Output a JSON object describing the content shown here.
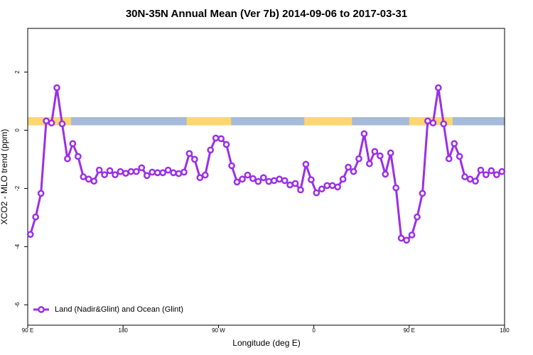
{
  "chart_data": {
    "type": "line",
    "title": "30N-35N Annual Mean (Ver 7b)   2014-09-06 to 2017-03-31",
    "x_label": "Longitude (deg E)",
    "y_label": "XCO2 - MLO trend (ppm)",
    "xlim": [
      90,
      540
    ],
    "ylim": [
      -6.7,
      3.5
    ],
    "xticks": [
      {
        "value": 90,
        "label": "90 E"
      },
      180,
      {
        "value": 270,
        "label": "90 W"
      },
      {
        "value": 360,
        "label": "0"
      },
      {
        "value": 450,
        "label": "90 E"
      },
      {
        "value": 540,
        "label": "180"
      }
    ],
    "yticks": [
      2,
      0,
      -2,
      -4,
      -6
    ],
    "legend": "bottom-left",
    "mask_ylim": [
      0.17,
      0.45
    ],
    "mask_colors": {
      "land": "#fcd670",
      "ocean": "#a6bad9"
    },
    "land_ranges": [
      [
        90,
        131
      ],
      [
        240,
        282
      ],
      [
        351,
        396
      ],
      [
        450,
        491
      ]
    ],
    "x": [
      92.5,
      97.5,
      102.5,
      107.5,
      112.5,
      117.5,
      122.5,
      127.5,
      132.5,
      137.5,
      142.5,
      147.5,
      152.5,
      157.5,
      162.5,
      167.5,
      172.5,
      177.5,
      182.5,
      187.5,
      192.5,
      197.5,
      202.5,
      207.5,
      212.5,
      217.5,
      222.5,
      227.5,
      232.5,
      237.5,
      242.5,
      247.5,
      252.5,
      257.5,
      262.5,
      267.5,
      272.5,
      277.5,
      282.5,
      287.5,
      292.5,
      297.5,
      302.5,
      307.5,
      312.5,
      317.5,
      322.5,
      327.5,
      332.5,
      337.5,
      342.5,
      347.5,
      352.5,
      357.5,
      362.5,
      367.5,
      372.5,
      377.5,
      382.5,
      387.5,
      392.5,
      397.5,
      402.5,
      407.5,
      412.5,
      417.5,
      422.5,
      427.5,
      432.5,
      437.5,
      442.5,
      447.5,
      452.5,
      457.5,
      462.5,
      467.5,
      472.5,
      477.5,
      482.5,
      487.5,
      492.5,
      497.5,
      502.5,
      507.5,
      512.5,
      517.5,
      522.5,
      527.5,
      532.5,
      537.5
    ],
    "series": [
      {
        "name": "Land (Nadir&Glint) and Ocean (Glint)",
        "color": "#9b2fe8",
        "values": [
          -3.58,
          -2.98,
          -2.17,
          0.32,
          0.25,
          1.46,
          0.22,
          -0.98,
          -0.46,
          -0.9,
          -1.6,
          -1.68,
          -1.75,
          -1.37,
          -1.53,
          -1.39,
          -1.53,
          -1.42,
          -1.48,
          -1.42,
          -1.42,
          -1.29,
          -1.56,
          -1.44,
          -1.46,
          -1.46,
          -1.37,
          -1.46,
          -1.49,
          -1.44,
          -0.8,
          -1.0,
          -1.63,
          -1.54,
          -0.68,
          -0.27,
          -0.29,
          -0.49,
          -1.22,
          -1.78,
          -1.68,
          -1.54,
          -1.66,
          -1.76,
          -1.63,
          -1.76,
          -1.73,
          -1.68,
          -1.73,
          -1.88,
          -1.83,
          -2.05,
          -1.17,
          -1.7,
          -2.15,
          -2.02,
          -1.9,
          -1.9,
          -1.95,
          -1.68,
          -1.27,
          -1.42,
          -0.98,
          -0.12,
          -1.15,
          -0.73,
          -0.88,
          -1.51,
          -0.78,
          -1.98,
          -3.71,
          -3.78,
          -3.6,
          -2.98,
          -2.17,
          0.32,
          0.25,
          1.46,
          0.22,
          -0.98,
          -0.46,
          -0.9,
          -1.6,
          -1.68,
          -1.75,
          -1.37,
          -1.53,
          -1.39,
          -1.53,
          -1.42
        ]
      }
    ]
  }
}
